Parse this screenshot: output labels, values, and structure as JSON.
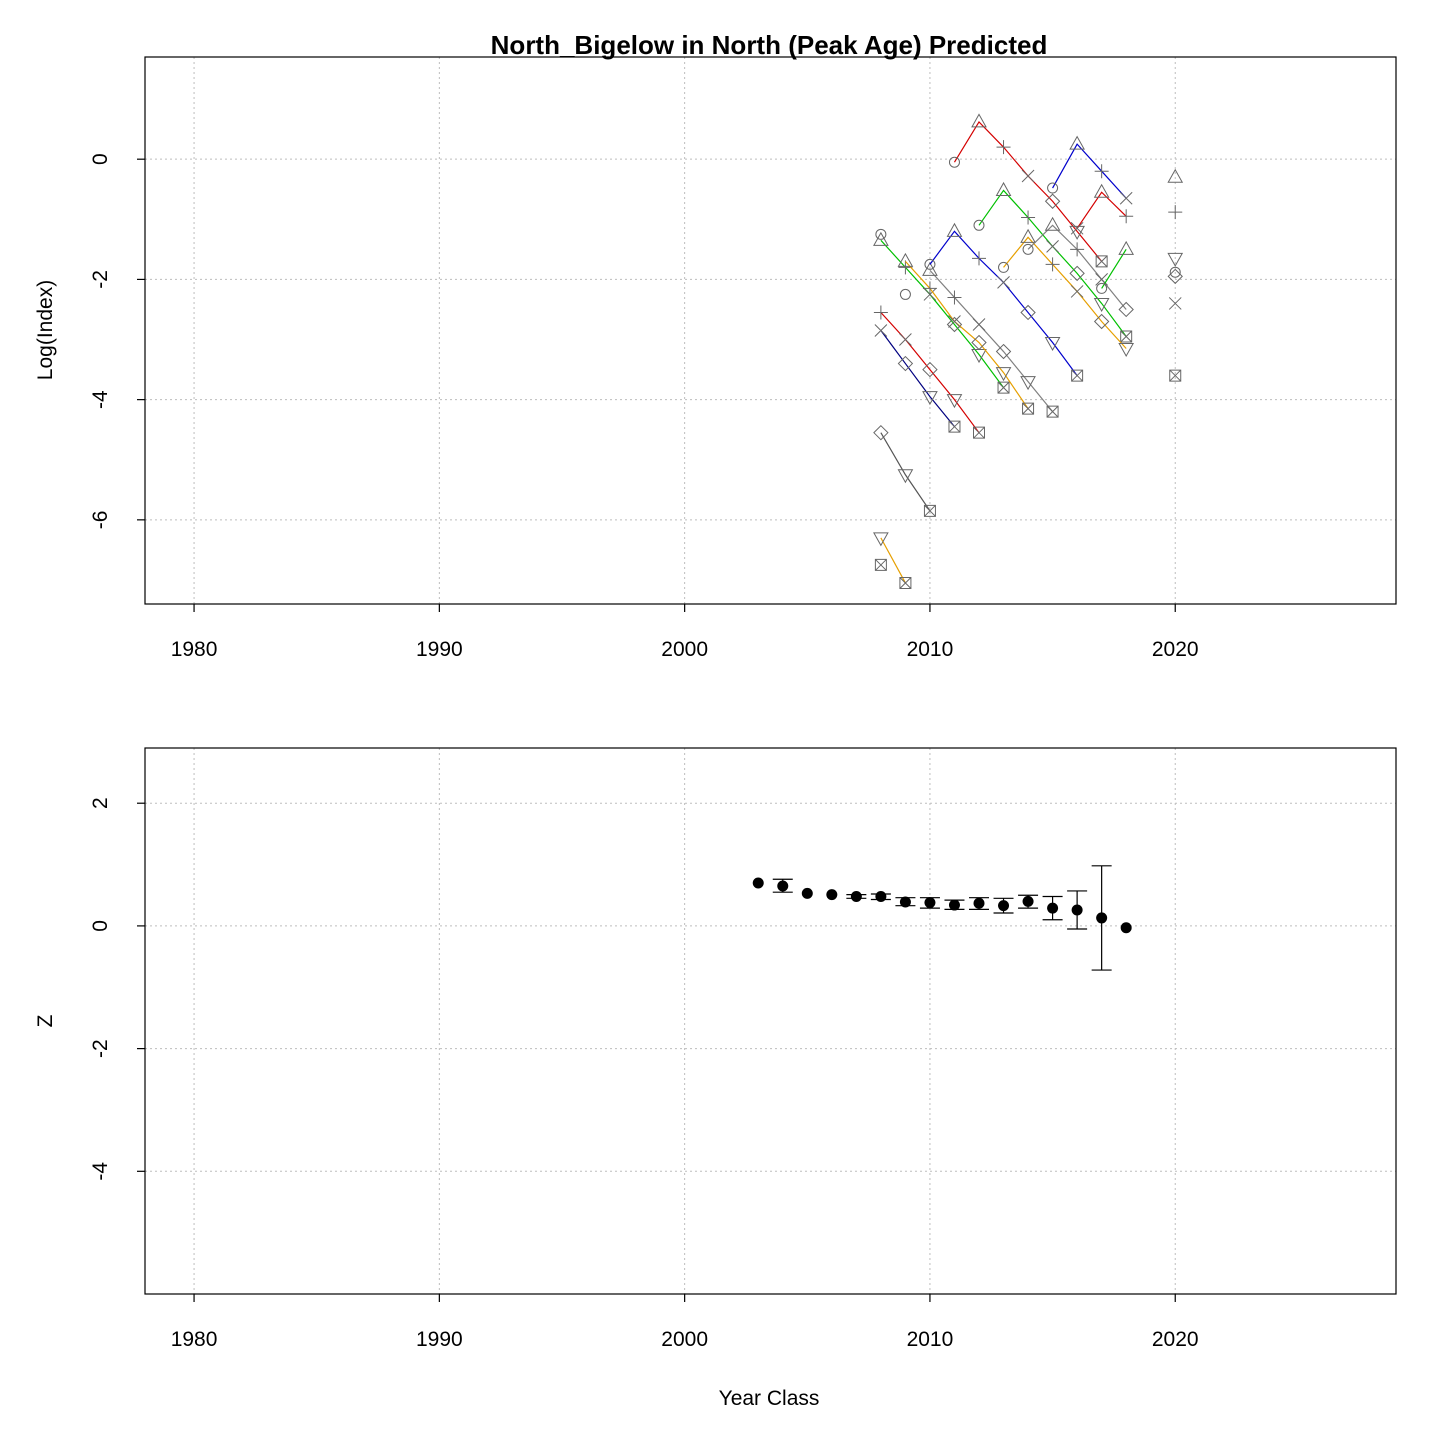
{
  "title": "North_Bigelow in North (Peak Age) Predicted",
  "chart_data": [
    {
      "type": "line",
      "panel": "top",
      "ylabel": "Log(Index)",
      "xlabel": "",
      "xlim": [
        1978,
        2029
      ],
      "ylim": [
        -7.4,
        1.7
      ],
      "xticks": [
        "1980",
        "1990",
        "2000",
        "2010",
        "2020"
      ],
      "yticks": [
        "-6",
        "-4",
        "-2",
        "0"
      ],
      "grid": true,
      "marker_symbols": [
        "circle",
        "triangle",
        "plus",
        "cross",
        "diamond",
        "inverted-triangle",
        "boxed-x"
      ],
      "series": [
        {
          "color": "#555555",
          "points": [
            [
              2008,
              -4.55,
              "diamond"
            ],
            [
              2009,
              -5.25,
              "inverted-triangle"
            ],
            [
              2010,
              -5.85,
              "boxed-x"
            ]
          ]
        },
        {
          "color": "#e69f00",
          "points": [
            [
              2008,
              -6.3,
              "inverted-triangle"
            ],
            [
              2009,
              -7.05,
              "boxed-x"
            ]
          ]
        },
        {
          "color": "#000080",
          "points": [
            [
              2008,
              -2.85,
              "cross"
            ],
            [
              2009,
              -3.4,
              "diamond"
            ],
            [
              2010,
              -3.95,
              "inverted-triangle"
            ],
            [
              2011,
              -4.45,
              "boxed-x"
            ]
          ]
        },
        {
          "color": "#d40000",
          "points": [
            [
              2008,
              -2.55,
              "plus"
            ],
            [
              2009,
              -3.0,
              "cross"
            ],
            [
              2010,
              -3.5,
              "diamond"
            ],
            [
              2011,
              -4.0,
              "inverted-triangle"
            ],
            [
              2012,
              -4.55,
              "boxed-x"
            ]
          ]
        },
        {
          "color": "#00c000",
          "points": [
            [
              2008,
              -1.35,
              "triangle"
            ],
            [
              2009,
              -1.8,
              "plus"
            ],
            [
              2010,
              -2.25,
              "cross"
            ],
            [
              2011,
              -2.75,
              "diamond"
            ],
            [
              2012,
              -3.25,
              "inverted-triangle"
            ],
            [
              2013,
              -3.8,
              "boxed-x"
            ]
          ]
        },
        {
          "color": "#e69f00",
          "points": [
            [
              2009,
              -1.7,
              "triangle"
            ],
            [
              2010,
              -2.15,
              "plus"
            ],
            [
              2011,
              -2.7,
              "cross"
            ],
            [
              2012,
              -3.05,
              "diamond"
            ],
            [
              2013,
              -3.55,
              "inverted-triangle"
            ],
            [
              2014,
              -4.15,
              "boxed-x"
            ]
          ]
        },
        {
          "color": "#808080",
          "points": [
            [
              2010,
              -1.85,
              "triangle"
            ],
            [
              2011,
              -2.3,
              "plus"
            ],
            [
              2012,
              -2.75,
              "cross"
            ],
            [
              2013,
              -3.2,
              "diamond"
            ],
            [
              2014,
              -3.7,
              "inverted-triangle"
            ],
            [
              2015,
              -4.2,
              "boxed-x"
            ]
          ]
        },
        {
          "color": "#0000cc",
          "points": [
            [
              2010,
              -1.75,
              "circle"
            ],
            [
              2011,
              -1.2,
              "triangle"
            ],
            [
              2012,
              -1.65,
              "plus"
            ],
            [
              2013,
              -2.05,
              "cross"
            ],
            [
              2014,
              -2.55,
              "diamond"
            ],
            [
              2015,
              -3.05,
              "inverted-triangle"
            ],
            [
              2016,
              -3.6,
              "boxed-x"
            ]
          ]
        },
        {
          "color": "#d40000",
          "points": [
            [
              2011,
              -0.05,
              "circle"
            ],
            [
              2012,
              0.62,
              "triangle"
            ],
            [
              2013,
              0.2,
              "plus"
            ],
            [
              2014,
              -0.28,
              "cross"
            ],
            [
              2015,
              -0.7,
              "diamond"
            ],
            [
              2016,
              -1.2,
              "inverted-triangle"
            ],
            [
              2017,
              -1.7,
              "boxed-x"
            ]
          ]
        },
        {
          "color": "#00c000",
          "points": [
            [
              2012,
              -1.1,
              "circle"
            ],
            [
              2013,
              -0.52,
              "triangle"
            ],
            [
              2014,
              -0.97,
              "plus"
            ],
            [
              2015,
              -1.45,
              "cross"
            ],
            [
              2016,
              -1.9,
              "diamond"
            ],
            [
              2017,
              -2.4,
              "inverted-triangle"
            ],
            [
              2018,
              -2.95,
              "boxed-x"
            ]
          ]
        },
        {
          "color": "#e69f00",
          "points": [
            [
              2013,
              -1.8,
              "circle"
            ],
            [
              2014,
              -1.3,
              "triangle"
            ],
            [
              2015,
              -1.75,
              "plus"
            ],
            [
              2016,
              -2.2,
              "cross"
            ],
            [
              2017,
              -2.7,
              "diamond"
            ],
            [
              2018,
              -3.15,
              "inverted-triangle"
            ]
          ]
        },
        {
          "color": "#808080",
          "points": [
            [
              2014,
              -1.5,
              "circle"
            ],
            [
              2015,
              -1.1,
              "triangle"
            ],
            [
              2016,
              -1.5,
              "plus"
            ],
            [
              2017,
              -2.0,
              "cross"
            ],
            [
              2018,
              -2.5,
              "diamond"
            ]
          ]
        },
        {
          "color": "#0000cc",
          "points": [
            [
              2015,
              -0.48,
              "circle"
            ],
            [
              2016,
              0.25,
              "triangle"
            ],
            [
              2017,
              -0.2,
              "plus"
            ],
            [
              2018,
              -0.65,
              "cross"
            ]
          ]
        },
        {
          "color": "#d40000",
          "points": [
            [
              2016,
              -1.15,
              "cross"
            ],
            [
              2017,
              -0.55,
              "triangle"
            ],
            [
              2018,
              -0.95,
              "plus"
            ]
          ]
        },
        {
          "color": "#00c000",
          "points": [
            [
              2017,
              -2.15,
              "circle"
            ],
            [
              2018,
              -1.5,
              "triangle"
            ]
          ]
        },
        {
          "color": "#808080",
          "points": [
            [
              2008,
              -6.75,
              "boxed-x"
            ]
          ]
        },
        {
          "color": "#808080",
          "points": [
            [
              2008,
              -1.25,
              "circle"
            ]
          ]
        },
        {
          "color": "#808080",
          "points": [
            [
              2009,
              -2.25,
              "circle"
            ]
          ]
        },
        {
          "color": "#808080",
          "points": [
            [
              2020,
              -0.3,
              "triangle"
            ],
            [
              2020,
              -0.88,
              "plus"
            ],
            [
              2020,
              -1.65,
              "inverted-triangle"
            ],
            [
              2020,
              -1.88,
              "circle"
            ],
            [
              2020,
              -1.95,
              "diamond"
            ],
            [
              2020,
              -2.4,
              "cross"
            ],
            [
              2020,
              -3.6,
              "boxed-x"
            ]
          ],
          "connected": false
        }
      ]
    },
    {
      "type": "scatter",
      "panel": "bottom",
      "ylabel": "Z",
      "xlabel": "Year Class",
      "xlim": [
        1978,
        2029
      ],
      "ylim": [
        -6.0,
        2.9
      ],
      "xticks": [
        "1980",
        "1990",
        "2000",
        "2010",
        "2020"
      ],
      "yticks": [
        "-4",
        "-2",
        "0",
        "2"
      ],
      "grid": true,
      "error_bars": true,
      "x": [
        2003,
        2004,
        2005,
        2006,
        2007,
        2008,
        2009,
        2010,
        2011,
        2012,
        2013,
        2014,
        2015,
        2016,
        2017,
        2018
      ],
      "y": [
        0.7,
        0.65,
        0.53,
        0.51,
        0.48,
        0.48,
        0.39,
        0.38,
        0.34,
        0.37,
        0.33,
        0.4,
        0.29,
        0.26,
        0.13,
        -0.03
      ],
      "lower": [
        0.7,
        0.55,
        0.53,
        0.51,
        0.45,
        0.43,
        0.33,
        0.29,
        0.27,
        0.27,
        0.21,
        0.29,
        0.1,
        -0.05,
        -0.72,
        -0.03
      ],
      "upper": [
        0.7,
        0.76,
        0.53,
        0.51,
        0.51,
        0.52,
        0.46,
        0.46,
        0.42,
        0.46,
        0.45,
        0.5,
        0.48,
        0.57,
        0.98,
        -0.03
      ]
    }
  ]
}
